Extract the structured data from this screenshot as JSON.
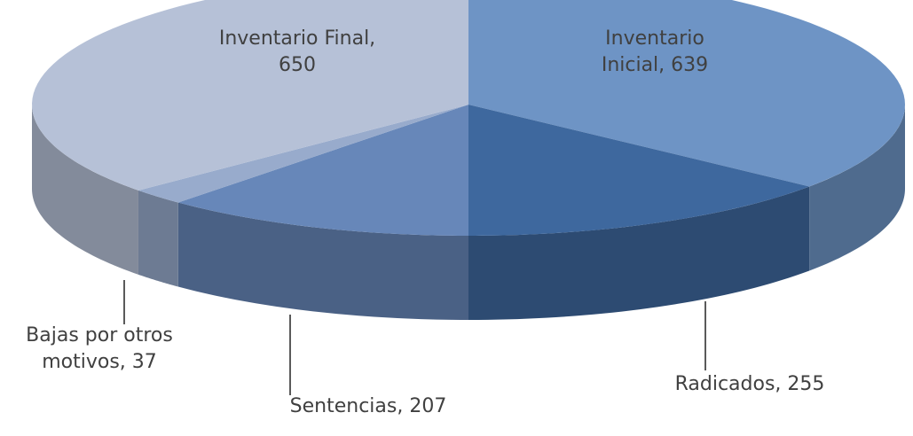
{
  "chart_data": {
    "type": "pie3d",
    "values": [
      639,
      255,
      207,
      37,
      650
    ],
    "value_labels": [
      "Inventario Inicial, 639",
      "Radicados, 255",
      "Sentencias, 207",
      "Bajas por otros motivos, 37",
      "Inventario Final, 650"
    ],
    "colors": [
      "#6e94c5",
      "#3e689e",
      "#6787b9",
      "#98abcc",
      "#b6c1d7"
    ]
  }
}
